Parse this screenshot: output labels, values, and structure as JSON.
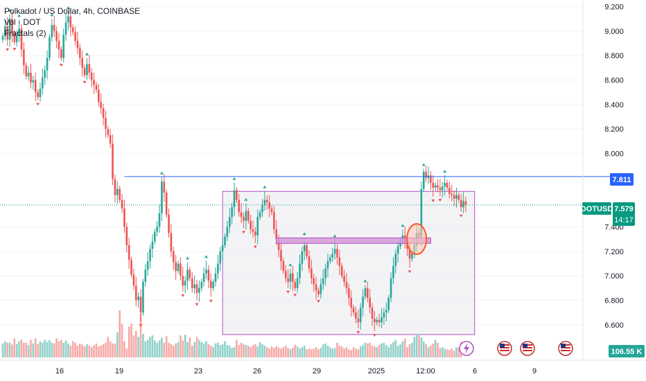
{
  "legend": {
    "symbol_line": "Polkadot / US Dollar, 4h, COINBASE",
    "vol_line": "Vol · DOT",
    "fractals_line": "Fractals (2)"
  },
  "price_axis": {
    "ticks": [
      "9.200",
      "9.000",
      "8.800",
      "8.600",
      "8.400",
      "8.200",
      "8.000",
      "7.400",
      "7.200",
      "7.000",
      "6.800",
      "6.600"
    ],
    "tick_values": [
      9.2,
      9.0,
      8.8,
      8.6,
      8.4,
      8.2,
      8.0,
      7.4,
      7.2,
      7.0,
      6.8,
      6.6
    ],
    "range": [
      6.48,
      9.22
    ]
  },
  "time_axis": {
    "labels": [
      "16",
      "19",
      "23",
      "26",
      "29",
      "2025",
      "12:00",
      "6",
      "9"
    ]
  },
  "tags": {
    "resistance": {
      "label": "7.811",
      "value": 7.811,
      "color": "#2962ff"
    },
    "symbol": {
      "label": "DOTUSD",
      "color": "#089981"
    },
    "last_price": {
      "label": "7.579",
      "value": 7.579,
      "color": "#089981"
    },
    "countdown": {
      "label": "14:17"
    },
    "volume": {
      "label": "106.55 K",
      "color": "#26a69a"
    }
  },
  "colors": {
    "up": "#26a69a",
    "down": "#ef5350",
    "up_vol": "#8fd1c9",
    "down_vol": "#f6a9a7",
    "rect_border": "#b04fc6",
    "rect_fill": "#e9e9ee",
    "bar_fill": "#d49ad6",
    "circle_stroke": "#ff5722",
    "circle_fill": "#fbc9b5",
    "fractal": "#ef5350"
  },
  "chart_data": {
    "type": "candlestick",
    "title": "Polkadot / US Dollar, 4h, COINBASE",
    "close": [
      8.96,
      9.04,
      8.93,
      9.1,
      8.98,
      8.91,
      8.96,
      9.02,
      8.85,
      8.72,
      8.63,
      8.66,
      8.58,
      8.6,
      8.5,
      8.46,
      8.53,
      8.62,
      8.68,
      8.78,
      8.95,
      9.05,
      9.0,
      8.92,
      8.85,
      8.78,
      8.97,
      9.07,
      9.12,
      9.03,
      8.99,
      8.92,
      8.86,
      8.78,
      8.7,
      8.64,
      8.73,
      8.66,
      8.6,
      8.56,
      8.52,
      8.42,
      8.37,
      8.29,
      8.2,
      8.15,
      8.08,
      7.79,
      7.66,
      7.71,
      7.62,
      7.55,
      7.4,
      7.25,
      7.13,
      7.01,
      6.92,
      6.8,
      6.83,
      6.7,
      6.95,
      7.05,
      7.12,
      7.22,
      7.28,
      7.36,
      7.4,
      7.51,
      7.77,
      7.68,
      7.5,
      7.35,
      7.2,
      7.11,
      7.04,
      7.1,
      7.0,
      6.92,
      6.96,
      7.05,
      6.98,
      6.9,
      6.93,
      6.86,
      6.9,
      6.95,
      7.02,
      7.05,
      6.96,
      6.9,
      6.95,
      7.02,
      7.1,
      7.2,
      7.25,
      7.32,
      7.4,
      7.48,
      7.56,
      7.7,
      7.62,
      7.52,
      7.48,
      7.45,
      7.53,
      7.45,
      7.38,
      7.36,
      7.33,
      7.48,
      7.52,
      7.58,
      7.62,
      7.6,
      7.55,
      7.52,
      7.38,
      7.3,
      7.21,
      7.12,
      7.04,
      6.98,
      6.95,
      7.02,
      6.95,
      6.9,
      6.98,
      7.1,
      7.2,
      7.25,
      7.16,
      7.06,
      6.98,
      6.93,
      6.88,
      6.85,
      6.93,
      6.98,
      7.06,
      7.12,
      7.15,
      7.18,
      7.22,
      7.15,
      7.08,
      7.0,
      6.95,
      6.9,
      6.82,
      6.74,
      6.7,
      6.65,
      6.62,
      6.74,
      6.83,
      6.9,
      6.82,
      6.74,
      6.65,
      6.62,
      6.64,
      6.62,
      6.66,
      6.7,
      6.72,
      6.82,
      6.98,
      7.08,
      7.18,
      7.24,
      7.29,
      7.33,
      7.27,
      7.22,
      7.14,
      7.18,
      7.25,
      7.35,
      7.32,
      7.71,
      7.85,
      7.8,
      7.82,
      7.76,
      7.72,
      7.74,
      7.72,
      7.7,
      7.73,
      7.76,
      7.72,
      7.67,
      7.66,
      7.63,
      7.66,
      7.62,
      7.56,
      7.61,
      7.579
    ],
    "volume_k": [
      95,
      110,
      100,
      102,
      88,
      130,
      90,
      110,
      120,
      100,
      100,
      85,
      120,
      95,
      130,
      92,
      110,
      100,
      120,
      105,
      118,
      100,
      95,
      130,
      110,
      120,
      100,
      115,
      95,
      80,
      110,
      100,
      80,
      95,
      88,
      75,
      90,
      80,
      70,
      85,
      95,
      75,
      80,
      90,
      100,
      140,
      110,
      95,
      95,
      170,
      320,
      230,
      110,
      60,
      210,
      230,
      150,
      180,
      140,
      300,
      160,
      110,
      120,
      140,
      150,
      115,
      100,
      115,
      135,
      100,
      145,
      100,
      90,
      80,
      95,
      105,
      150,
      115,
      155,
      105,
      135,
      80,
      105,
      140,
      120,
      105,
      95,
      110,
      90,
      80,
      70,
      95,
      100,
      85,
      90,
      110,
      85,
      80,
      65,
      70,
      120,
      85,
      100,
      90,
      85,
      80,
      70,
      85,
      90,
      75,
      105,
      90,
      80,
      70,
      60,
      75,
      65,
      75,
      65,
      60,
      70,
      80,
      65,
      55,
      65,
      85,
      75,
      60,
      70,
      80,
      55,
      60,
      55,
      60,
      70,
      55,
      65,
      90,
      95,
      80,
      70,
      60,
      65,
      100,
      80,
      75,
      60,
      70,
      55,
      50,
      70,
      60,
      55,
      75,
      85,
      100,
      95,
      100,
      80,
      75,
      70,
      85,
      95,
      100,
      85,
      70,
      90,
      105,
      120,
      80,
      90,
      110,
      130,
      70,
      90,
      100,
      140,
      160,
      150,
      135,
      110,
      90,
      70,
      80,
      95,
      120,
      100,
      65,
      70,
      60,
      55,
      50,
      60,
      45,
      70,
      65,
      106.55
    ],
    "ylim": [
      6.48,
      9.22
    ],
    "levels": {
      "resistance": 7.811,
      "last": 7.579
    },
    "dates": [
      "16",
      "19",
      "23",
      "26",
      "29",
      "2025",
      "12:00",
      "6",
      "9"
    ]
  }
}
